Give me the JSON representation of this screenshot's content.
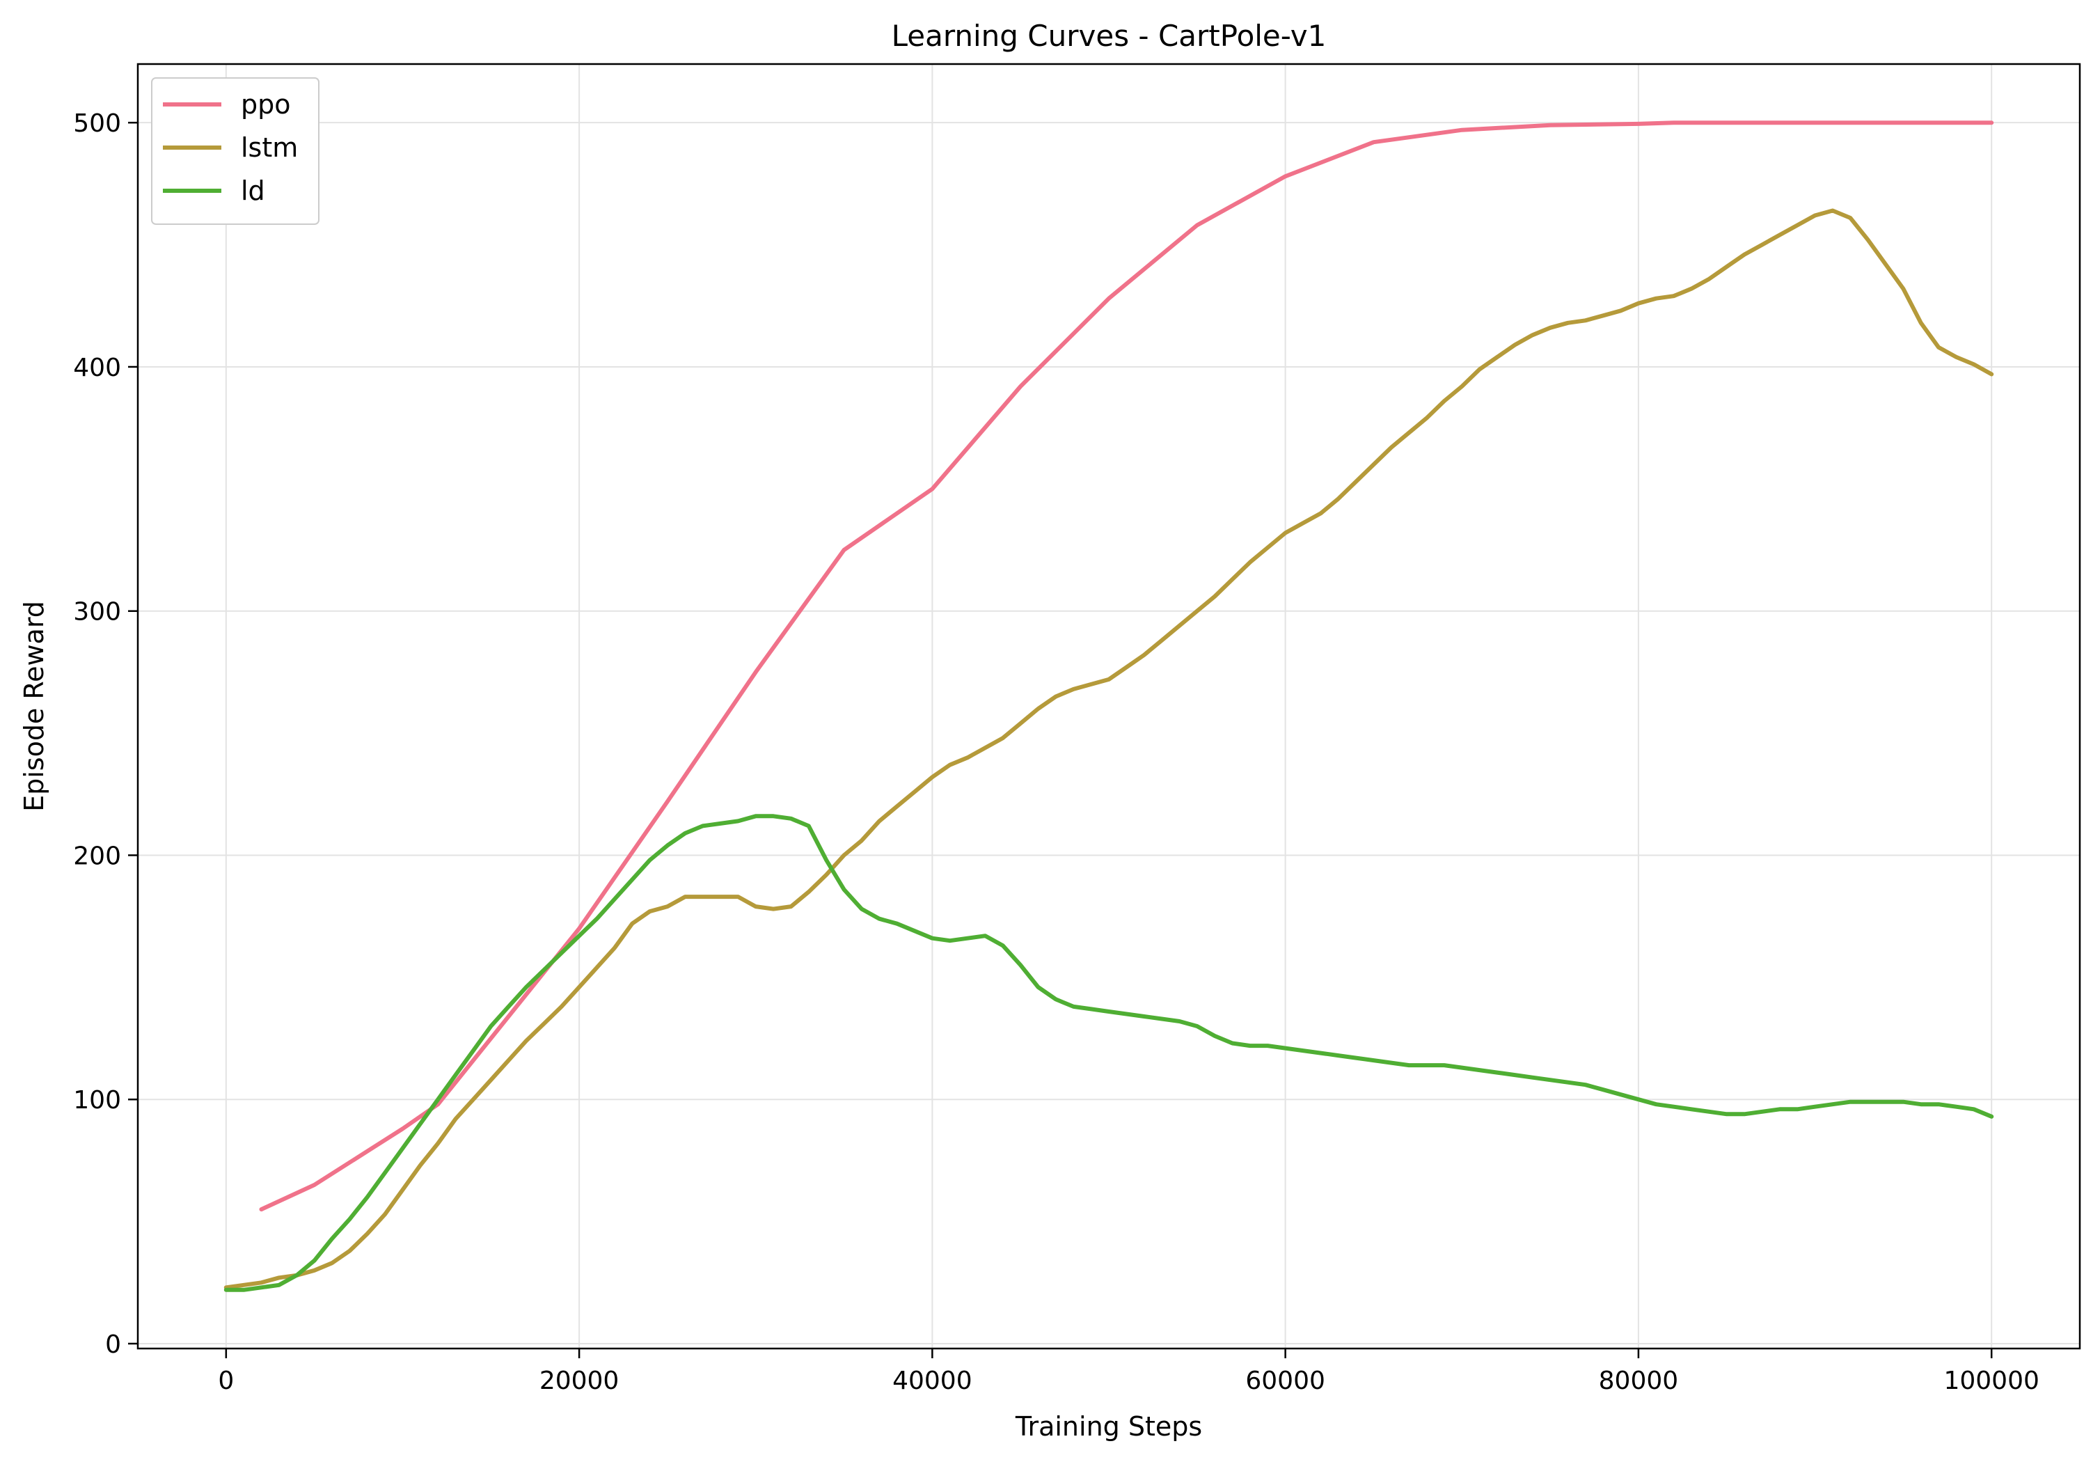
{
  "chart_data": {
    "type": "line",
    "title": "Learning Curves - CartPole-v1",
    "xlabel": "Training Steps",
    "ylabel": "Episode Reward",
    "xlim": [
      -5000,
      105000
    ],
    "ylim": [
      -2,
      524
    ],
    "xticks": [
      0,
      20000,
      40000,
      60000,
      80000,
      100000
    ],
    "yticks": [
      0,
      100,
      200,
      300,
      400,
      500
    ],
    "grid": true,
    "legend": "top-left",
    "series": [
      {
        "name": "ppo",
        "color": "#f0728a",
        "x": [
          2000,
          5000,
          10000,
          12000,
          15000,
          20000,
          25000,
          30000,
          35000,
          40000,
          45000,
          50000,
          55000,
          60000,
          65000,
          70000,
          75000,
          80000,
          82000,
          90000,
          100000
        ],
        "y": [
          55,
          65,
          88,
          98,
          125,
          170,
          222,
          275,
          325,
          350,
          392,
          428,
          458,
          478,
          492,
          497,
          499,
          499.5,
          500,
          500,
          500
        ]
      },
      {
        "name": "lstm",
        "color": "#b59a3a",
        "x": [
          0,
          1000,
          2000,
          3000,
          4000,
          5000,
          6000,
          7000,
          8000,
          9000,
          10000,
          11000,
          12000,
          13000,
          14000,
          15000,
          16000,
          17000,
          18000,
          19000,
          20000,
          21000,
          22000,
          23000,
          24000,
          25000,
          26000,
          27000,
          28000,
          29000,
          30000,
          31000,
          32000,
          33000,
          34000,
          35000,
          36000,
          37000,
          38000,
          39000,
          40000,
          41000,
          42000,
          43000,
          44000,
          45000,
          46000,
          47000,
          48000,
          49000,
          50000,
          51000,
          52000,
          53000,
          54000,
          55000,
          56000,
          57000,
          58000,
          59000,
          60000,
          61000,
          62000,
          63000,
          64000,
          65000,
          66000,
          67000,
          68000,
          69000,
          70000,
          71000,
          72000,
          73000,
          74000,
          75000,
          76000,
          77000,
          78000,
          79000,
          80000,
          81000,
          82000,
          83000,
          84000,
          85000,
          86000,
          87000,
          88000,
          89000,
          90000,
          91000,
          92000,
          93000,
          94000,
          95000,
          96000,
          97000,
          98000,
          99000,
          100000
        ],
        "y": [
          23,
          24,
          25,
          27,
          28,
          30,
          33,
          38,
          45,
          53,
          63,
          73,
          82,
          92,
          100,
          108,
          116,
          124,
          131,
          138,
          146,
          154,
          162,
          172,
          177,
          179,
          183,
          183,
          183,
          183,
          179,
          178,
          179,
          185,
          192,
          200,
          206,
          214,
          220,
          226,
          232,
          237,
          240,
          244,
          248,
          254,
          260,
          265,
          268,
          270,
          272,
          277,
          282,
          288,
          294,
          300,
          306,
          313,
          320,
          326,
          332,
          336,
          340,
          346,
          353,
          360,
          367,
          373,
          379,
          386,
          392,
          399,
          404,
          409,
          413,
          416,
          418,
          419,
          421,
          423,
          426,
          428,
          429,
          432,
          436,
          441,
          446,
          450,
          454,
          458,
          462,
          464,
          461,
          452,
          442,
          432,
          418,
          408,
          404,
          401,
          397
        ]
      },
      {
        "name": "ld",
        "color": "#4fae33",
        "x": [
          0,
          1000,
          2000,
          3000,
          4000,
          5000,
          6000,
          7000,
          8000,
          9000,
          10000,
          11000,
          12000,
          13000,
          14000,
          15000,
          16000,
          17000,
          18000,
          19000,
          20000,
          21000,
          22000,
          23000,
          24000,
          25000,
          26000,
          27000,
          28000,
          29000,
          30000,
          31000,
          32000,
          33000,
          34000,
          35000,
          36000,
          37000,
          38000,
          39000,
          40000,
          41000,
          42000,
          43000,
          44000,
          45000,
          46000,
          47000,
          48000,
          49000,
          50000,
          51000,
          52000,
          53000,
          54000,
          55000,
          56000,
          57000,
          58000,
          59000,
          60000,
          61000,
          62000,
          63000,
          64000,
          65000,
          66000,
          67000,
          68000,
          69000,
          70000,
          71000,
          72000,
          73000,
          74000,
          75000,
          76000,
          77000,
          78000,
          79000,
          80000,
          81000,
          82000,
          83000,
          84000,
          85000,
          86000,
          87000,
          88000,
          89000,
          90000,
          91000,
          92000,
          93000,
          94000,
          95000,
          96000,
          97000,
          98000,
          99000,
          100000
        ],
        "y": [
          22,
          22,
          23,
          24,
          28,
          34,
          43,
          51,
          60,
          70,
          80,
          90,
          100,
          110,
          120,
          130,
          138,
          146,
          153,
          160,
          167,
          174,
          182,
          190,
          198,
          204,
          209,
          212,
          213,
          214,
          216,
          216,
          215,
          212,
          198,
          186,
          178,
          174,
          172,
          169,
          166,
          165,
          166,
          167,
          163,
          155,
          146,
          141,
          138,
          137,
          136,
          135,
          134,
          133,
          132,
          130,
          126,
          123,
          122,
          122,
          121,
          120,
          119,
          118,
          117,
          116,
          115,
          114,
          114,
          114,
          113,
          112,
          111,
          110,
          109,
          108,
          107,
          106,
          104,
          102,
          100,
          98,
          97,
          96,
          95,
          94,
          94,
          95,
          96,
          96,
          97,
          98,
          99,
          99,
          99,
          99,
          98,
          98,
          97,
          96,
          93
        ]
      }
    ]
  }
}
